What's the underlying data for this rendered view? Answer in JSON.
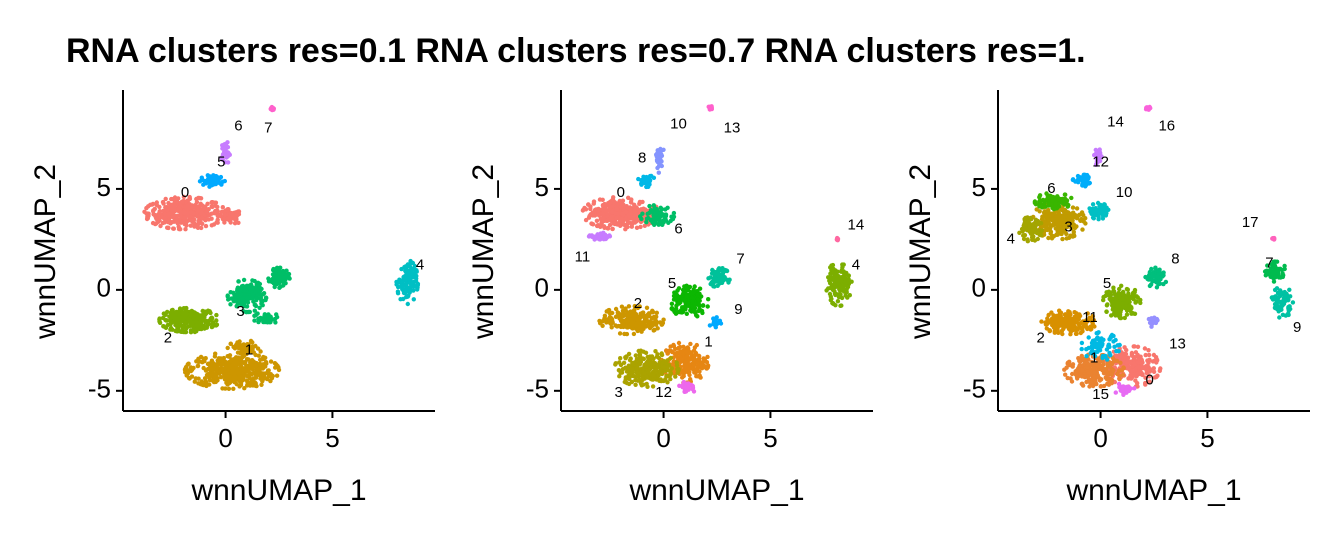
{
  "chart_data": {
    "type": "scatter",
    "title": "RNA clusters res=0.1 RNA clusters res=0.7 RNA clusters res=1.",
    "panels": [
      {
        "xlabel": "wnnUMAP_1",
        "ylabel": "wnnUMAP_2",
        "xlim": [
          -4.8,
          9.8
        ],
        "ylim": [
          -6,
          9.8
        ],
        "xticks": [
          0,
          5
        ],
        "yticks": [
          -5,
          0,
          5
        ],
        "clusters": [
          {
            "id": "0",
            "color": "#F8766D",
            "blobs": [
              {
                "cx": -1.9,
                "cy": 3.8,
                "rx": 1.9,
                "ry": 0.8,
                "n": 360
              },
              {
                "cx": 0.2,
                "cy": 3.6,
                "rx": 0.6,
                "ry": 0.4,
                "n": 60
              }
            ],
            "label_x": -1.9,
            "label_y": 4.8
          },
          {
            "id": "1",
            "color": "#CD9600",
            "blobs": [
              {
                "cx": 0.3,
                "cy": -4.0,
                "rx": 2.2,
                "ry": 0.9,
                "n": 420
              },
              {
                "cx": 0.9,
                "cy": -2.9,
                "rx": 0.8,
                "ry": 0.4,
                "n": 60
              }
            ],
            "label_x": 1.1,
            "label_y": -3.0
          },
          {
            "id": "2",
            "color": "#7CAE00",
            "blobs": [
              {
                "cx": -1.7,
                "cy": -1.5,
                "rx": 1.4,
                "ry": 0.6,
                "n": 260
              }
            ],
            "label_x": -2.7,
            "label_y": -2.4
          },
          {
            "id": "3",
            "color": "#00BE67",
            "blobs": [
              {
                "cx": 1.0,
                "cy": -0.3,
                "rx": 0.9,
                "ry": 0.8,
                "n": 170
              },
              {
                "cx": 2.5,
                "cy": 0.6,
                "rx": 0.5,
                "ry": 0.5,
                "n": 70
              },
              {
                "cx": 1.9,
                "cy": -1.4,
                "rx": 0.6,
                "ry": 0.3,
                "n": 40
              }
            ],
            "label_x": 0.7,
            "label_y": -1.1
          },
          {
            "id": "4",
            "color": "#00BFC4",
            "blobs": [
              {
                "cx": 8.5,
                "cy": 0.4,
                "rx": 0.5,
                "ry": 1.1,
                "n": 120
              }
            ],
            "label_x": 9.1,
            "label_y": 1.2
          },
          {
            "id": "5",
            "color": "#00A9FF",
            "blobs": [
              {
                "cx": -0.6,
                "cy": 5.4,
                "rx": 0.6,
                "ry": 0.3,
                "n": 60
              }
            ],
            "label_x": -0.2,
            "label_y": 6.3
          },
          {
            "id": "6",
            "color": "#C77CFF",
            "blobs": [
              {
                "cx": 0.0,
                "cy": 6.8,
                "rx": 0.2,
                "ry": 0.6,
                "n": 30
              }
            ],
            "label_x": 0.6,
            "label_y": 8.1
          },
          {
            "id": "7",
            "color": "#FF61CC",
            "blobs": [
              {
                "cx": 2.2,
                "cy": 9.0,
                "rx": 0.12,
                "ry": 0.1,
                "n": 12
              }
            ],
            "label_x": 2.0,
            "label_y": 8.0
          }
        ]
      },
      {
        "xlabel": "wnnUMAP_1",
        "ylabel": "wnnUMAP_2",
        "xlim": [
          -4.8,
          9.8
        ],
        "ylim": [
          -6,
          9.8
        ],
        "xticks": [
          0,
          5
        ],
        "yticks": [
          -5,
          0,
          5
        ],
        "clusters": [
          {
            "id": "0",
            "color": "#F8766D",
            "blobs": [
              {
                "cx": -2.0,
                "cy": 3.8,
                "rx": 1.8,
                "ry": 0.8,
                "n": 330
              }
            ],
            "label_x": -2.0,
            "label_y": 4.8
          },
          {
            "id": "1",
            "color": "#E68613",
            "blobs": [
              {
                "cx": 1.0,
                "cy": -3.6,
                "rx": 1.1,
                "ry": 1.0,
                "n": 200
              }
            ],
            "label_x": 2.1,
            "label_y": -2.6
          },
          {
            "id": "2",
            "color": "#CD9600",
            "blobs": [
              {
                "cx": -1.5,
                "cy": -1.5,
                "rx": 1.5,
                "ry": 0.7,
                "n": 220
              }
            ],
            "label_x": -1.2,
            "label_y": -0.7
          },
          {
            "id": "3",
            "color": "#ABA300",
            "blobs": [
              {
                "cx": -0.8,
                "cy": -3.9,
                "rx": 1.5,
                "ry": 0.9,
                "n": 250
              }
            ],
            "label_x": -2.1,
            "label_y": -5.1
          },
          {
            "id": "4",
            "color": "#7CAE00",
            "blobs": [
              {
                "cx": 8.2,
                "cy": 0.3,
                "rx": 0.6,
                "ry": 1.1,
                "n": 130
              }
            ],
            "label_x": 9.0,
            "label_y": 1.2
          },
          {
            "id": "5",
            "color": "#0CB702",
            "blobs": [
              {
                "cx": 1.2,
                "cy": -0.6,
                "rx": 0.9,
                "ry": 0.8,
                "n": 170
              }
            ],
            "label_x": 0.4,
            "label_y": 0.3
          },
          {
            "id": "6",
            "color": "#00BE67",
            "blobs": [
              {
                "cx": -0.3,
                "cy": 3.7,
                "rx": 0.8,
                "ry": 0.5,
                "n": 80
              }
            ],
            "label_x": 0.7,
            "label_y": 3.0
          },
          {
            "id": "7",
            "color": "#00C19A",
            "blobs": [
              {
                "cx": 2.6,
                "cy": 0.6,
                "rx": 0.5,
                "ry": 0.5,
                "n": 70
              }
            ],
            "label_x": 3.6,
            "label_y": 1.5
          },
          {
            "id": "8",
            "color": "#00B8E7",
            "blobs": [
              {
                "cx": -0.8,
                "cy": 5.4,
                "rx": 0.4,
                "ry": 0.3,
                "n": 35
              }
            ],
            "label_x": -1.0,
            "label_y": 6.5
          },
          {
            "id": "9",
            "color": "#00A9FF",
            "blobs": [
              {
                "cx": 2.4,
                "cy": -1.6,
                "rx": 0.3,
                "ry": 0.25,
                "n": 20
              }
            ],
            "label_x": 3.5,
            "label_y": -1.0
          },
          {
            "id": "10",
            "color": "#8494FF",
            "blobs": [
              {
                "cx": -0.2,
                "cy": 6.5,
                "rx": 0.25,
                "ry": 0.7,
                "n": 30
              }
            ],
            "label_x": 0.7,
            "label_y": 8.2
          },
          {
            "id": "11",
            "color": "#C77CFF",
            "blobs": [
              {
                "cx": -3.0,
                "cy": 2.6,
                "rx": 0.5,
                "ry": 0.25,
                "n": 30
              }
            ],
            "label_x": -3.8,
            "label_y": 1.6
          },
          {
            "id": "12",
            "color": "#ED68ED",
            "blobs": [
              {
                "cx": 1.1,
                "cy": -4.8,
                "rx": 0.5,
                "ry": 0.3,
                "n": 30
              }
            ],
            "label_x": 0.0,
            "label_y": -5.1
          },
          {
            "id": "13",
            "color": "#FF61CC",
            "blobs": [
              {
                "cx": 2.2,
                "cy": 9.0,
                "rx": 0.12,
                "ry": 0.1,
                "n": 12
              }
            ],
            "label_x": 3.2,
            "label_y": 8.0
          },
          {
            "id": "14",
            "color": "#FF68A1",
            "blobs": [
              {
                "cx": 8.1,
                "cy": 2.5,
                "rx": 0.08,
                "ry": 0.08,
                "n": 6
              }
            ],
            "label_x": 9.0,
            "label_y": 3.2
          }
        ]
      },
      {
        "xlabel": "wnnUMAP_1",
        "ylabel": "wnnUMAP_2",
        "xlim": [
          -4.8,
          9.8
        ],
        "ylim": [
          -6,
          9.8
        ],
        "xticks": [
          0,
          5
        ],
        "yticks": [
          -5,
          0,
          5
        ],
        "clusters": [
          {
            "id": "0",
            "color": "#F8766D",
            "blobs": [
              {
                "cx": 1.5,
                "cy": -3.8,
                "rx": 1.3,
                "ry": 1.0,
                "n": 220
              }
            ],
            "label_x": 2.3,
            "label_y": -4.5
          },
          {
            "id": "1",
            "color": "#EA8331",
            "blobs": [
              {
                "cx": -0.3,
                "cy": -4.0,
                "rx": 1.4,
                "ry": 0.8,
                "n": 220
              }
            ],
            "label_x": -0.3,
            "label_y": -3.4
          },
          {
            "id": "2",
            "color": "#D89000",
            "blobs": [
              {
                "cx": -1.5,
                "cy": -1.6,
                "rx": 1.3,
                "ry": 0.6,
                "n": 180
              }
            ],
            "label_x": -2.8,
            "label_y": -2.4
          },
          {
            "id": "3",
            "color": "#C09B00",
            "blobs": [
              {
                "cx": -2.0,
                "cy": 3.4,
                "rx": 1.3,
                "ry": 0.9,
                "n": 230
              }
            ],
            "label_x": -1.5,
            "label_y": 3.1
          },
          {
            "id": "4",
            "color": "#A3A500",
            "blobs": [
              {
                "cx": -3.3,
                "cy": 3.0,
                "rx": 0.6,
                "ry": 0.6,
                "n": 80
              }
            ],
            "label_x": -4.2,
            "label_y": 2.5
          },
          {
            "id": "5",
            "color": "#7CAE00",
            "blobs": [
              {
                "cx": 1.0,
                "cy": -0.6,
                "rx": 0.9,
                "ry": 0.8,
                "n": 160
              }
            ],
            "label_x": 0.3,
            "label_y": 0.3
          },
          {
            "id": "6",
            "color": "#39B600",
            "blobs": [
              {
                "cx": -2.2,
                "cy": 4.4,
                "rx": 0.9,
                "ry": 0.4,
                "n": 90
              }
            ],
            "label_x": -2.3,
            "label_y": 5.0
          },
          {
            "id": "7",
            "color": "#00BB4E",
            "blobs": [
              {
                "cx": 8.2,
                "cy": 0.9,
                "rx": 0.5,
                "ry": 0.5,
                "n": 60
              }
            ],
            "label_x": 7.9,
            "label_y": 1.3
          },
          {
            "id": "8",
            "color": "#00BF7D",
            "blobs": [
              {
                "cx": 2.6,
                "cy": 0.6,
                "rx": 0.5,
                "ry": 0.5,
                "n": 70
              }
            ],
            "label_x": 3.5,
            "label_y": 1.5
          },
          {
            "id": "9",
            "color": "#00C1A3",
            "blobs": [
              {
                "cx": 8.5,
                "cy": -0.6,
                "rx": 0.5,
                "ry": 0.8,
                "n": 70
              }
            ],
            "label_x": 9.2,
            "label_y": -1.9
          },
          {
            "id": "10",
            "color": "#00BFC4",
            "blobs": [
              {
                "cx": -0.1,
                "cy": 3.9,
                "rx": 0.5,
                "ry": 0.4,
                "n": 50
              }
            ],
            "label_x": 1.1,
            "label_y": 4.8
          },
          {
            "id": "11",
            "color": "#00B9E3",
            "blobs": [
              {
                "cx": 0.0,
                "cy": -2.8,
                "rx": 0.9,
                "ry": 0.7,
                "n": 70
              }
            ],
            "label_x": -0.5,
            "label_y": -1.4
          },
          {
            "id": "12",
            "color": "#00ADFA",
            "blobs": [
              {
                "cx": -0.8,
                "cy": 5.4,
                "rx": 0.5,
                "ry": 0.3,
                "n": 40
              }
            ],
            "label_x": 0.0,
            "label_y": 6.3
          },
          {
            "id": "13",
            "color": "#9590FF",
            "blobs": [
              {
                "cx": 2.5,
                "cy": -1.6,
                "rx": 0.3,
                "ry": 0.25,
                "n": 20
              }
            ],
            "label_x": 3.6,
            "label_y": -2.7
          },
          {
            "id": "14",
            "color": "#C77CFF",
            "blobs": [
              {
                "cx": -0.1,
                "cy": 6.6,
                "rx": 0.2,
                "ry": 0.6,
                "n": 25
              }
            ],
            "label_x": 0.7,
            "label_y": 8.3
          },
          {
            "id": "15",
            "color": "#E76BF3",
            "blobs": [
              {
                "cx": 1.1,
                "cy": -4.9,
                "rx": 0.5,
                "ry": 0.3,
                "n": 30
              }
            ],
            "label_x": 0.0,
            "label_y": -5.2
          },
          {
            "id": "16",
            "color": "#FA62DB",
            "blobs": [
              {
                "cx": 2.2,
                "cy": 9.0,
                "rx": 0.12,
                "ry": 0.1,
                "n": 12
              }
            ],
            "label_x": 3.1,
            "label_y": 8.1
          },
          {
            "id": "17",
            "color": "#FF62BC",
            "blobs": [
              {
                "cx": 8.1,
                "cy": 2.5,
                "rx": 0.08,
                "ry": 0.08,
                "n": 6
              }
            ],
            "label_x": 7.0,
            "label_y": 3.3
          }
        ]
      }
    ]
  }
}
